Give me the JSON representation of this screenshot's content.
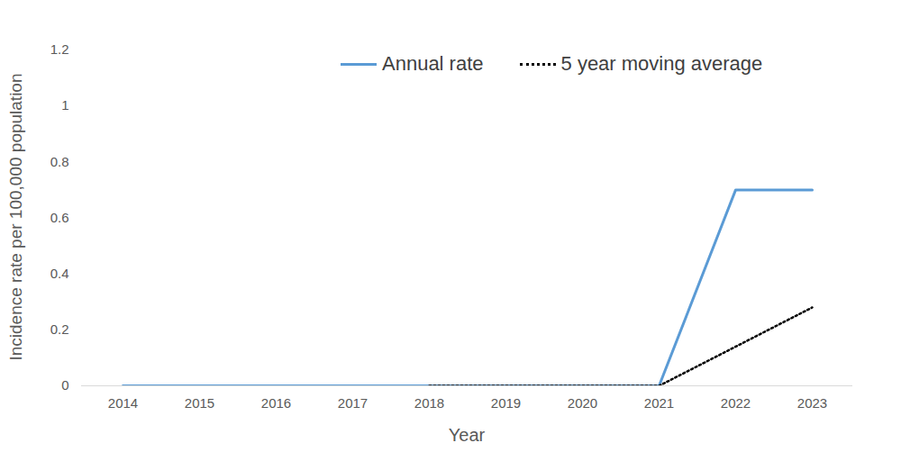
{
  "chart_data": {
    "type": "line",
    "x_label": "Year",
    "y_label": "Incidence rate per 100,000 population",
    "categories": [
      "2014",
      "2015",
      "2016",
      "2017",
      "2018",
      "2019",
      "2020",
      "2021",
      "2022",
      "2023"
    ],
    "series": [
      {
        "name": "Annual rate",
        "color": "#5b9bd5",
        "line_style": "solid",
        "values": [
          0,
          0,
          0,
          0,
          0,
          0,
          0,
          0,
          0.7,
          0.7
        ]
      },
      {
        "name": "5 year moving average",
        "color": "#000000",
        "line_style": "dotted",
        "values": [
          null,
          null,
          null,
          null,
          0,
          0,
          0,
          0,
          0.14,
          0.28
        ]
      }
    ],
    "ylim": [
      0,
      1.2
    ],
    "yticks": [
      0,
      0.2,
      0.4,
      0.6,
      0.8,
      1,
      1.2
    ],
    "grid": false,
    "legend": "top"
  }
}
